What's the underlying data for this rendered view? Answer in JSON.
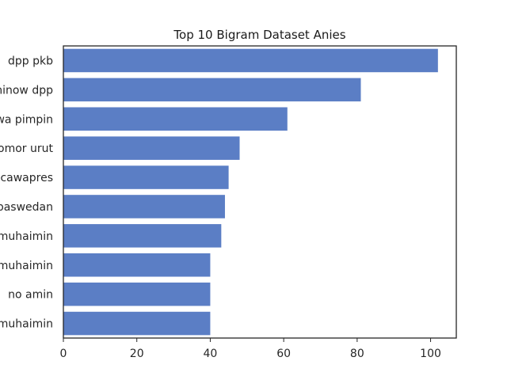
{
  "chart_data": {
    "type": "bar",
    "orientation": "horizontal",
    "title": "Top 10 Bigram Dataset Anies",
    "xlabel": "",
    "ylabel": "",
    "categories": [
      "dpp pkb",
      "minow dpp",
      "wa pimpin",
      "nomor urut",
      "cawapres",
      "baswedan",
      "muhaimin",
      "muhaimin",
      "no amin",
      "muhaimin"
    ],
    "values": [
      102,
      81,
      61,
      48,
      45,
      44,
      43,
      40,
      40,
      40
    ],
    "xlim": [
      0,
      107
    ],
    "xticks": [
      0,
      20,
      40,
      60,
      80,
      100
    ],
    "grid": false,
    "bar_color": "#5b7ec5"
  }
}
